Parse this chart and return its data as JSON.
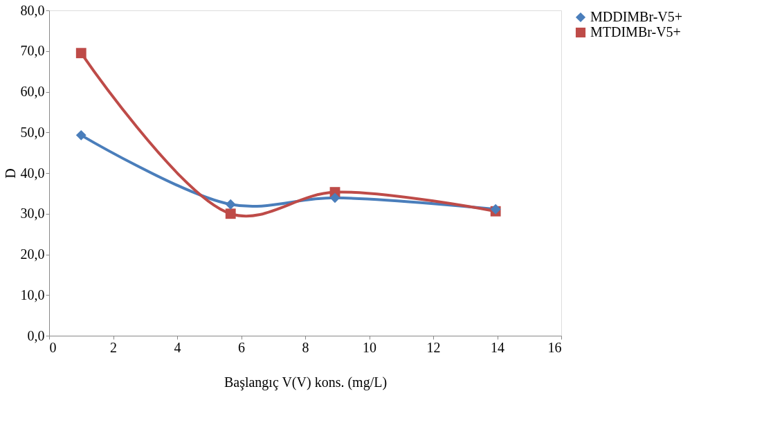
{
  "chart_data": {
    "type": "line",
    "xlabel": "Başlangıç V(V) kons. (mg/L)",
    "ylabel": "D",
    "xlim": [
      0,
      16
    ],
    "xticks": [
      0,
      2,
      4,
      6,
      8,
      10,
      12,
      14,
      16
    ],
    "ylim": [
      0,
      80
    ],
    "yticks": [
      {
        "value": 0,
        "label": "0,0"
      },
      {
        "value": 10,
        "label": "10,0"
      },
      {
        "value": 20,
        "label": "20,0"
      },
      {
        "value": 30,
        "label": "30,0"
      },
      {
        "value": 40,
        "label": "40,0"
      },
      {
        "value": 50,
        "label": "50,0"
      },
      {
        "value": 60,
        "label": "60,0"
      },
      {
        "value": 70,
        "label": "70,0"
      },
      {
        "value": 80,
        "label": "80,0"
      }
    ],
    "x": [
      1,
      5.67,
      8.93,
      13.95
    ],
    "grid": false,
    "legend": "right",
    "line_style": "solid",
    "series": [
      {
        "name": "MDDIMBr-V5+",
        "color": "#4a7ebb",
        "marker": "diamond",
        "values": [
          49.3,
          32.3,
          33.9,
          31.1
        ]
      },
      {
        "name": "MTDIMBr-V5+",
        "color": "#be4b48",
        "marker": "square",
        "values": [
          69.5,
          30.0,
          35.3,
          30.6
        ]
      }
    ]
  }
}
